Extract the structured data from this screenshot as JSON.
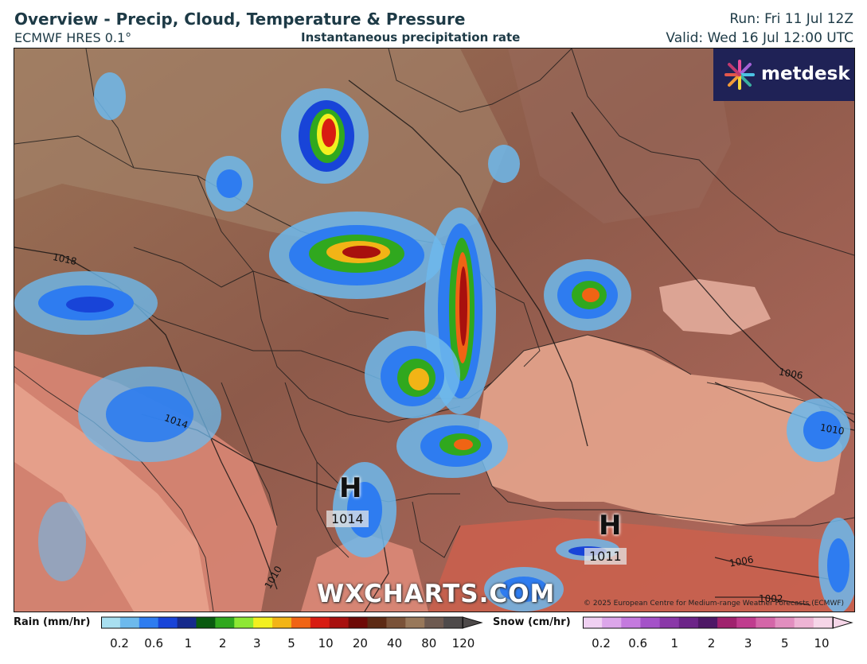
{
  "header": {
    "title": "Overview - Precip, Cloud, Temperature & Pressure",
    "model": "ECMWF HRES 0.1°",
    "field": "Instantaneous precipitation rate",
    "run": "Run: Fri 11 Jul 12Z",
    "valid": "Valid: Wed 16 Jul 12:00 UTC"
  },
  "logo": {
    "text": "metdesk"
  },
  "pressure_centres": [
    {
      "mark": "H",
      "value": "1014"
    },
    {
      "mark": "H",
      "value": "1011"
    }
  ],
  "isobar_labels": [
    "1018",
    "1014",
    "1010",
    "1006",
    "1006",
    "1002",
    "1010"
  ],
  "watermark": "WXCHARTS.COM",
  "copyright": "© 2025 European Centre for Medium-range Weather Forecasts (ECMWF)",
  "legend": {
    "rain_label": "Rain (mm/hr)",
    "rain_ticks": [
      "0.2",
      "0.6",
      "1",
      "2",
      "3",
      "5",
      "10",
      "20",
      "40",
      "80",
      "120"
    ],
    "rain_colors": [
      "#a8dff0",
      "#6db9ec",
      "#2e7cf0",
      "#1844d8",
      "#162a8c",
      "#0a5a10",
      "#30a81e",
      "#8ee834",
      "#f2f020",
      "#f2b416",
      "#f06414",
      "#d81c12",
      "#a8100e",
      "#6e0a06",
      "#5c2a14",
      "#7a5238",
      "#98785a",
      "#6e5a50",
      "#4e4a4a"
    ],
    "snow_label": "Snow (cm/hr)",
    "snow_ticks": [
      "0.2",
      "0.6",
      "1",
      "2",
      "3",
      "5",
      "10"
    ],
    "snow_colors": [
      "#f0d0f2",
      "#dca6ea",
      "#c47ade",
      "#a452c8",
      "#8a38a8",
      "#6c2488",
      "#4e1866",
      "#a0226e",
      "#c03c8e",
      "#d466a8",
      "#e28ebf",
      "#eeb4d4",
      "#f6d6e8"
    ]
  }
}
